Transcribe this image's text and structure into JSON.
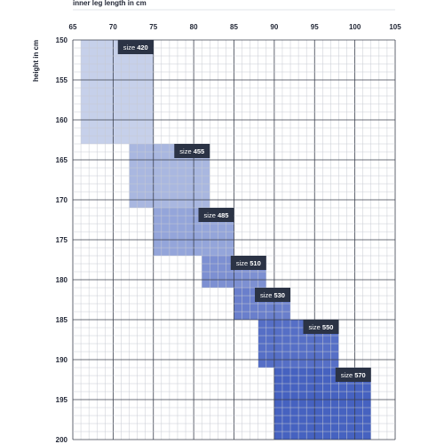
{
  "chart_data": {
    "type": "heatmap",
    "xlabel": "inner leg length in cm",
    "ylabel": "height in cm",
    "xlim": [
      65,
      105
    ],
    "ylim": [
      150,
      200
    ],
    "x_ticks": [
      65,
      70,
      75,
      80,
      85,
      90,
      95,
      100,
      105
    ],
    "y_ticks": [
      150,
      155,
      160,
      165,
      170,
      175,
      180,
      185,
      190,
      195,
      200
    ],
    "grid": true,
    "sizes": [
      {
        "label_prefix": "size",
        "label_value": "420",
        "x_range": [
          66,
          75
        ],
        "y_range": [
          150,
          163
        ],
        "color": "#c6d0ea"
      },
      {
        "label_prefix": "size",
        "label_value": "455",
        "x_range": [
          72,
          82
        ],
        "y_range": [
          163,
          171
        ],
        "color": "#a9b7e0"
      },
      {
        "label_prefix": "size",
        "label_value": "485",
        "x_range": [
          75,
          85
        ],
        "y_range": [
          171,
          177
        ],
        "color": "#94a5da"
      },
      {
        "label_prefix": "size",
        "label_value": "510",
        "x_range": [
          81,
          89
        ],
        "y_range": [
          177,
          181
        ],
        "color": "#7d90d2"
      },
      {
        "label_prefix": "size",
        "label_value": "530",
        "x_range": [
          85,
          92
        ],
        "y_range": [
          181,
          185
        ],
        "color": "#6a7fcc"
      },
      {
        "label_prefix": "size",
        "label_value": "550",
        "x_range": [
          88,
          98
        ],
        "y_range": [
          185,
          191
        ],
        "color": "#566fc6"
      },
      {
        "label_prefix": "size",
        "label_value": "570",
        "x_range": [
          90,
          102
        ],
        "y_range": [
          191,
          200
        ],
        "color": "#4662c0"
      }
    ],
    "label_bg_color": "#2b3345"
  }
}
